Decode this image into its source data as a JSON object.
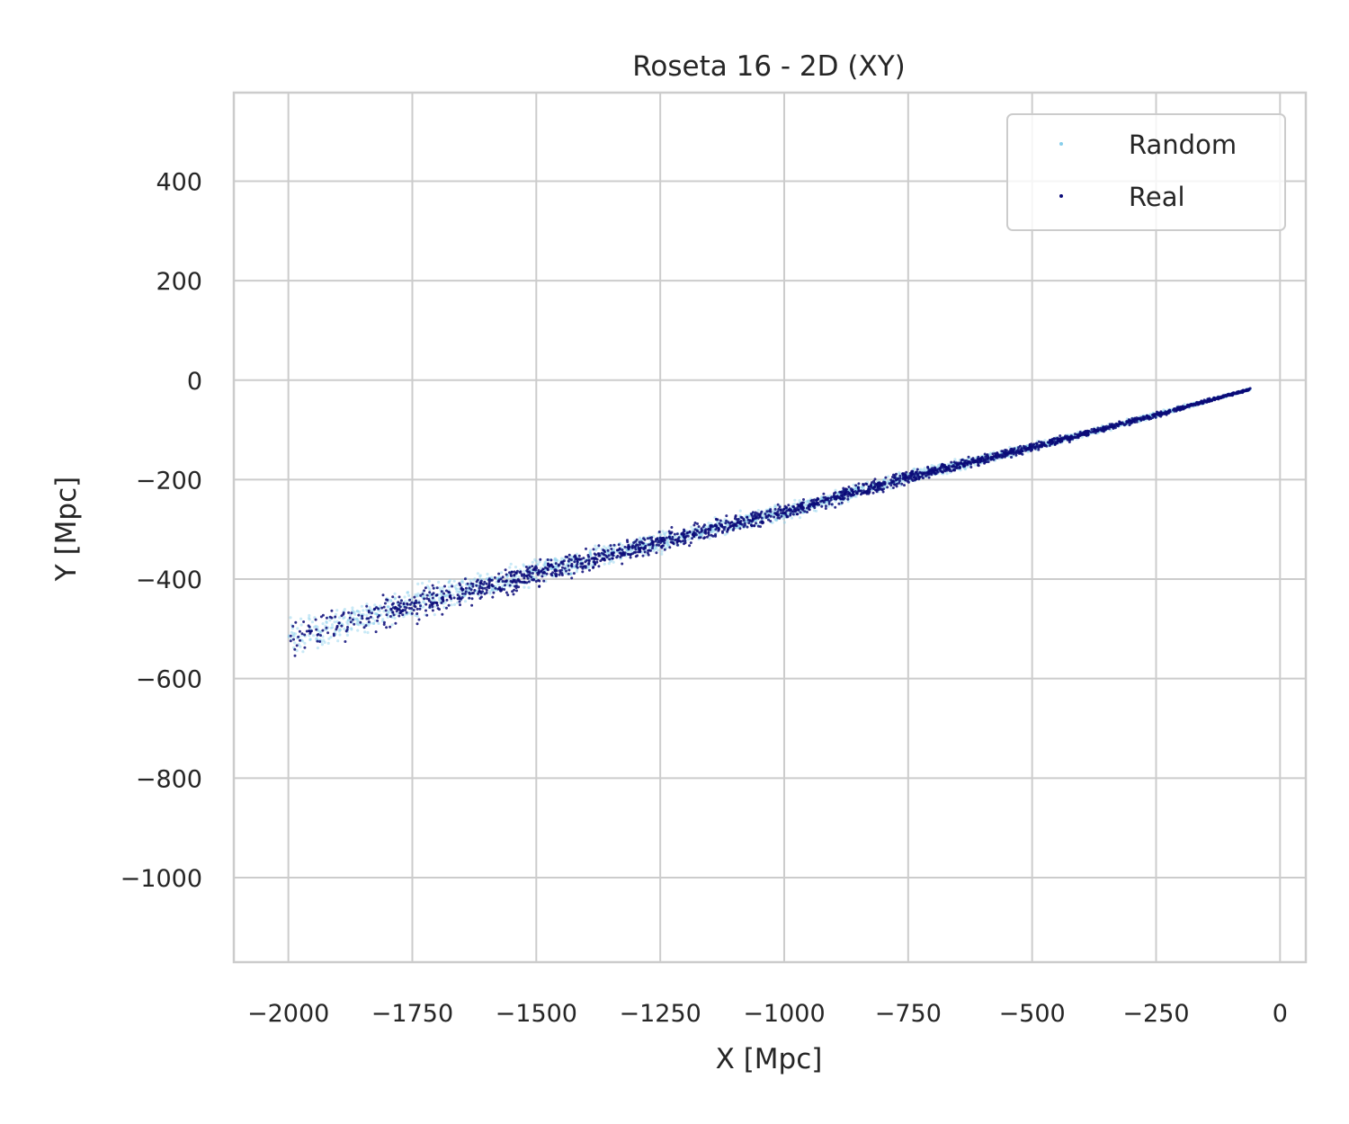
{
  "chart_data": {
    "type": "scatter",
    "title": "Roseta 16 - 2D (XY)",
    "xlabel": "X [Mpc]",
    "ylabel": "Y [Mpc]",
    "xlim": [
      -2110,
      52
    ],
    "ylim": [
      -1170,
      578
    ],
    "xticks": [
      -2000,
      -1750,
      -1500,
      -1250,
      -1000,
      -750,
      -500,
      -250,
      0
    ],
    "xtick_labels": [
      "−2000",
      "−1750",
      "−1500",
      "−1250",
      "−1000",
      "−750",
      "−500",
      "−250",
      "0"
    ],
    "yticks": [
      400,
      200,
      0,
      -200,
      -400,
      -600,
      -800,
      -1000
    ],
    "ytick_labels": [
      "400",
      "200",
      "0",
      "−200",
      "−400",
      "−600",
      "−800",
      "−1000"
    ],
    "grid": true,
    "legend_position": "top-right",
    "series": [
      {
        "name": "Random",
        "color": "#87ceeb",
        "marker": "small-dot",
        "description_range": {
          "x_min": -2010,
          "x_max": -50,
          "slope": 0.262,
          "spread_at_far_end": 90,
          "spread_at_near_end": 6
        },
        "density_profile": [
          {
            "x": -2000,
            "center_y": -520,
            "halfwidth": 55
          },
          {
            "x": -1750,
            "center_y": -450,
            "halfwidth": 45
          },
          {
            "x": -1500,
            "center_y": -385,
            "halfwidth": 35
          },
          {
            "x": -1250,
            "center_y": -325,
            "halfwidth": 30
          },
          {
            "x": -1000,
            "center_y": -265,
            "halfwidth": 25
          },
          {
            "x": -750,
            "center_y": -195,
            "halfwidth": 18
          },
          {
            "x": -500,
            "center_y": -135,
            "halfwidth": 12
          },
          {
            "x": -250,
            "center_y": -70,
            "halfwidth": 8
          },
          {
            "x": -60,
            "center_y": -18,
            "halfwidth": 3
          }
        ]
      },
      {
        "name": "Real",
        "color": "#0a0a78",
        "marker": "small-dot",
        "density_profile": [
          {
            "x": -2000,
            "center_y": -520,
            "halfwidth": 50
          },
          {
            "x": -1750,
            "center_y": -455,
            "halfwidth": 45
          },
          {
            "x": -1500,
            "center_y": -390,
            "halfwidth": 35
          },
          {
            "x": -1250,
            "center_y": -325,
            "halfwidth": 30
          },
          {
            "x": -1000,
            "center_y": -265,
            "halfwidth": 25
          },
          {
            "x": -750,
            "center_y": -195,
            "halfwidth": 18
          },
          {
            "x": -500,
            "center_y": -135,
            "halfwidth": 12
          },
          {
            "x": -250,
            "center_y": -70,
            "halfwidth": 8
          },
          {
            "x": -60,
            "center_y": -18,
            "halfwidth": 3
          }
        ]
      }
    ]
  }
}
